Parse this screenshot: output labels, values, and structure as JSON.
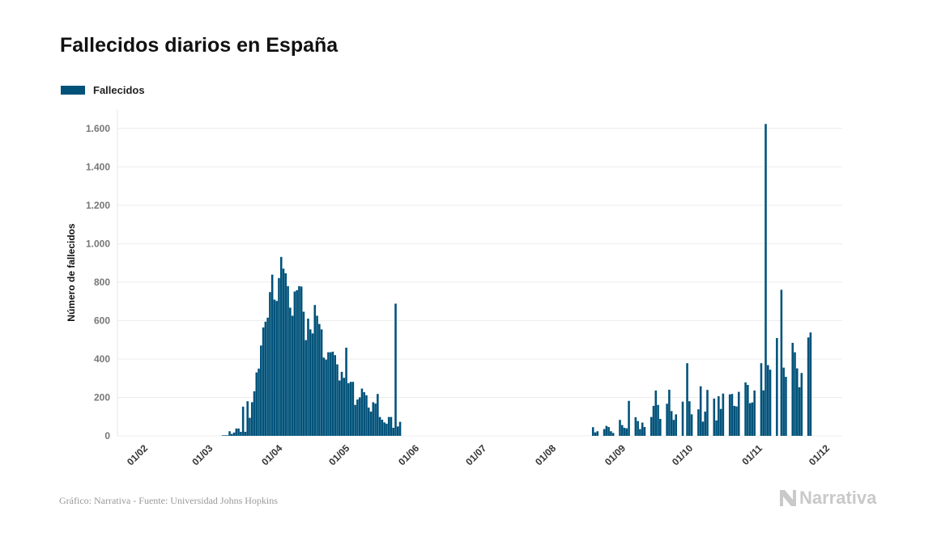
{
  "title": "Fallecidos diarios en España",
  "footer": "Gráfico: Narrativa - Fuente: Universidad Johns Hopkins",
  "logo": "Narrativa",
  "chart_data": {
    "type": "bar",
    "title": "Fallecidos diarios en España",
    "ylabel": "Número de fallecidos",
    "xlabel": "",
    "legend": {
      "placement": "top-left",
      "entries": [
        "Fallecidos"
      ]
    },
    "series": [
      {
        "name": "Fallecidos",
        "color": "#00527a"
      }
    ],
    "ylim": [
      0,
      1700
    ],
    "xlim": [
      "2020-02-01",
      "2020-12-01"
    ],
    "grid": "horizontal",
    "y_ticks": [
      0,
      200,
      400,
      600,
      800,
      1000,
      1200,
      1400,
      1600
    ],
    "y_tick_labels": [
      "0",
      "200",
      "400",
      "600",
      "800",
      "1.000",
      "1.200",
      "1.400",
      "1.600"
    ],
    "x_ticks": [
      "2020-02-01",
      "2020-03-01",
      "2020-04-01",
      "2020-05-01",
      "2020-06-01",
      "2020-07-01",
      "2020-08-01",
      "2020-09-01",
      "2020-10-01",
      "2020-11-01",
      "2020-12-01"
    ],
    "x_tick_labels": [
      "01/02",
      "01/03",
      "01/04",
      "01/05",
      "01/06",
      "01/07",
      "01/08",
      "01/09",
      "01/10",
      "01/11",
      "01/12"
    ],
    "points": [
      [
        "2020-03-07",
        3
      ],
      [
        "2020-03-08",
        3
      ],
      [
        "2020-03-09",
        3
      ],
      [
        "2020-03-10",
        24
      ],
      [
        "2020-03-11",
        10
      ],
      [
        "2020-03-12",
        17
      ],
      [
        "2020-03-13",
        38
      ],
      [
        "2020-03-14",
        38
      ],
      [
        "2020-03-15",
        21
      ],
      [
        "2020-03-16",
        152
      ],
      [
        "2020-03-17",
        21
      ],
      [
        "2020-03-18",
        180
      ],
      [
        "2020-03-19",
        94
      ],
      [
        "2020-03-20",
        175
      ],
      [
        "2020-03-21",
        232
      ],
      [
        "2020-03-22",
        330
      ],
      [
        "2020-03-23",
        350
      ],
      [
        "2020-03-24",
        470
      ],
      [
        "2020-03-25",
        564
      ],
      [
        "2020-03-26",
        594
      ],
      [
        "2020-03-27",
        615
      ],
      [
        "2020-03-28",
        748
      ],
      [
        "2020-03-29",
        839
      ],
      [
        "2020-03-30",
        709
      ],
      [
        "2020-03-31",
        702
      ],
      [
        "2020-04-01",
        821
      ],
      [
        "2020-04-02",
        931
      ],
      [
        "2020-04-03",
        870
      ],
      [
        "2020-04-04",
        846
      ],
      [
        "2020-04-05",
        779
      ],
      [
        "2020-04-06",
        667
      ],
      [
        "2020-04-07",
        625
      ],
      [
        "2020-04-08",
        751
      ],
      [
        "2020-04-09",
        758
      ],
      [
        "2020-04-10",
        779
      ],
      [
        "2020-04-11",
        777
      ],
      [
        "2020-04-12",
        646
      ],
      [
        "2020-04-13",
        498
      ],
      [
        "2020-04-14",
        610
      ],
      [
        "2020-04-15",
        554
      ],
      [
        "2020-04-16",
        533
      ],
      [
        "2020-04-17",
        681
      ],
      [
        "2020-04-18",
        625
      ],
      [
        "2020-04-19",
        582
      ],
      [
        "2020-04-20",
        554
      ],
      [
        "2020-04-21",
        407
      ],
      [
        "2020-04-22",
        397
      ],
      [
        "2020-04-23",
        435
      ],
      [
        "2020-04-24",
        435
      ],
      [
        "2020-04-25",
        438
      ],
      [
        "2020-04-26",
        420
      ],
      [
        "2020-04-27",
        372
      ],
      [
        "2020-04-28",
        288
      ],
      [
        "2020-04-29",
        333
      ],
      [
        "2020-04-30",
        302
      ],
      [
        "2020-05-01",
        459
      ],
      [
        "2020-05-02",
        274
      ],
      [
        "2020-05-03",
        281
      ],
      [
        "2020-05-04",
        281
      ],
      [
        "2020-05-05",
        161
      ],
      [
        "2020-05-06",
        189
      ],
      [
        "2020-05-07",
        200
      ],
      [
        "2020-05-08",
        246
      ],
      [
        "2020-05-09",
        227
      ],
      [
        "2020-05-10",
        211
      ],
      [
        "2020-05-11",
        147
      ],
      [
        "2020-05-12",
        126
      ],
      [
        "2020-05-13",
        175
      ],
      [
        "2020-05-14",
        168
      ],
      [
        "2020-05-15",
        218
      ],
      [
        "2020-05-16",
        98
      ],
      [
        "2020-05-17",
        84
      ],
      [
        "2020-05-18",
        70
      ],
      [
        "2020-05-19",
        63
      ],
      [
        "2020-05-20",
        98
      ],
      [
        "2020-05-21",
        98
      ],
      [
        "2020-05-22",
        42
      ],
      [
        "2020-05-23",
        688
      ],
      [
        "2020-05-24",
        49
      ],
      [
        "2020-05-25",
        73
      ],
      [
        "2020-08-19",
        45
      ],
      [
        "2020-08-20",
        18
      ],
      [
        "2020-08-21",
        24
      ],
      [
        "2020-08-24",
        35
      ],
      [
        "2020-08-25",
        52
      ],
      [
        "2020-08-26",
        46
      ],
      [
        "2020-08-27",
        24
      ],
      [
        "2020-08-28",
        15
      ],
      [
        "2020-08-31",
        83
      ],
      [
        "2020-09-01",
        56
      ],
      [
        "2020-09-02",
        42
      ],
      [
        "2020-09-03",
        39
      ],
      [
        "2020-09-04",
        182
      ],
      [
        "2020-09-07",
        97
      ],
      [
        "2020-09-08",
        77
      ],
      [
        "2020-09-09",
        35
      ],
      [
        "2020-09-10",
        69
      ],
      [
        "2020-09-11",
        46
      ],
      [
        "2020-09-14",
        98
      ],
      [
        "2020-09-15",
        156
      ],
      [
        "2020-09-16",
        236
      ],
      [
        "2020-09-17",
        161
      ],
      [
        "2020-09-18",
        88
      ],
      [
        "2020-09-21",
        167
      ],
      [
        "2020-09-22",
        240
      ],
      [
        "2020-09-23",
        129
      ],
      [
        "2020-09-24",
        83
      ],
      [
        "2020-09-25",
        112
      ],
      [
        "2020-09-28",
        178
      ],
      [
        "2020-09-30",
        378
      ],
      [
        "2020-10-01",
        180
      ],
      [
        "2020-10-02",
        112
      ],
      [
        "2020-10-05",
        138
      ],
      [
        "2020-10-06",
        258
      ],
      [
        "2020-10-07",
        74
      ],
      [
        "2020-10-08",
        126
      ],
      [
        "2020-10-09",
        239
      ],
      [
        "2020-10-12",
        194
      ],
      [
        "2020-10-13",
        80
      ],
      [
        "2020-10-14",
        206
      ],
      [
        "2020-10-15",
        140
      ],
      [
        "2020-10-16",
        220
      ],
      [
        "2020-10-19",
        216
      ],
      [
        "2020-10-20",
        218
      ],
      [
        "2020-10-21",
        156
      ],
      [
        "2020-10-22",
        153
      ],
      [
        "2020-10-23",
        229
      ],
      [
        "2020-10-26",
        278
      ],
      [
        "2020-10-27",
        265
      ],
      [
        "2020-10-28",
        170
      ],
      [
        "2020-10-29",
        174
      ],
      [
        "2020-10-30",
        236
      ],
      [
        "2020-11-02",
        378
      ],
      [
        "2020-11-03",
        237
      ],
      [
        "2020-11-04",
        1623
      ],
      [
        "2020-11-05",
        368
      ],
      [
        "2020-11-06",
        344
      ],
      [
        "2020-11-09",
        509
      ],
      [
        "2020-11-11",
        760
      ],
      [
        "2020-11-12",
        355
      ],
      [
        "2020-11-13",
        307
      ],
      [
        "2020-11-16",
        484
      ],
      [
        "2020-11-17",
        435
      ],
      [
        "2020-11-18",
        351
      ],
      [
        "2020-11-19",
        253
      ],
      [
        "2020-11-20",
        327
      ],
      [
        "2020-11-23",
        512
      ],
      [
        "2020-11-24",
        538
      ]
    ]
  }
}
